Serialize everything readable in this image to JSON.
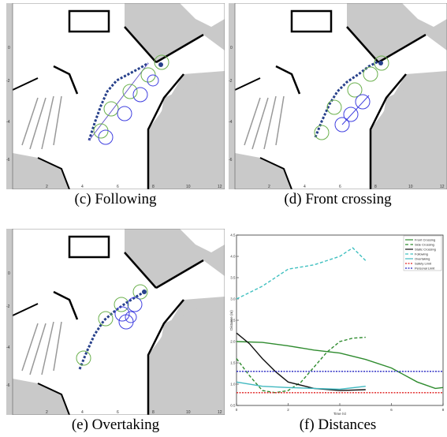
{
  "panels": [
    {
      "id": "c",
      "caption": "(c) Following"
    },
    {
      "id": "d",
      "caption": "(d) Front crossing"
    },
    {
      "id": "e",
      "caption": "(e) Overtaking"
    },
    {
      "id": "f",
      "caption": "(f) Distances"
    }
  ],
  "maps": {
    "xticks": [
      "2",
      "4",
      "6",
      "8",
      "10",
      "12"
    ],
    "yticks": [
      "0",
      "-2",
      "-4",
      "-6"
    ]
  },
  "chart_data": {
    "type": "line",
    "xlabel": "Time (s)",
    "ylabel": "Distance (m)",
    "xlim": [
      0,
      8
    ],
    "ylim": [
      0.5,
      4.5
    ],
    "xticks": [
      0,
      2,
      4,
      6,
      8
    ],
    "yticks": [
      0.5,
      1.0,
      1.5,
      2.0,
      2.5,
      3.0,
      3.5,
      4.0,
      4.5
    ],
    "grid": false,
    "legend_position": "top-right",
    "series": [
      {
        "name": "Front Crossing",
        "color": "#2e8b2e",
        "dash": "solid",
        "x": [
          0,
          1,
          2,
          3,
          4,
          5,
          6,
          7,
          7.7,
          8
        ],
        "y": [
          2.0,
          1.98,
          1.9,
          1.8,
          1.73,
          1.58,
          1.38,
          1.05,
          0.9,
          0.92
        ]
      },
      {
        "name": "Side Crossing",
        "color": "#2e8b2e",
        "dash": "dashed",
        "x": [
          0,
          0.5,
          1,
          1.5,
          2,
          2.5,
          3,
          3.5,
          4,
          4.5,
          5
        ],
        "y": [
          1.6,
          1.2,
          0.85,
          0.8,
          0.85,
          1.05,
          1.4,
          1.75,
          2.0,
          2.08,
          2.1
        ]
      },
      {
        "name": "Static Crossing",
        "color": "#111111",
        "dash": "solid",
        "x": [
          0,
          0.5,
          1,
          1.5,
          2,
          3,
          4,
          5
        ],
        "y": [
          2.2,
          1.95,
          1.6,
          1.3,
          1.05,
          0.9,
          0.85,
          0.87
        ]
      },
      {
        "name": "Following",
        "color": "#40c0c0",
        "dash": "dashed",
        "x": [
          0,
          1,
          2,
          3,
          4,
          4.5,
          5
        ],
        "y": [
          3.0,
          3.3,
          3.7,
          3.8,
          4.0,
          4.2,
          3.9
        ]
      },
      {
        "name": "Overtaking",
        "color": "#40b8c0",
        "dash": "solid",
        "x": [
          0,
          1,
          2,
          3,
          4,
          5
        ],
        "y": [
          1.05,
          0.95,
          0.92,
          0.9,
          0.88,
          0.95
        ]
      },
      {
        "name": "Safety Limit",
        "color": "#e02020",
        "dash": "dotted",
        "x": [
          0,
          8
        ],
        "y": [
          0.8,
          0.8
        ]
      },
      {
        "name": "Personal Limit",
        "color": "#2020c0",
        "dash": "dotted",
        "x": [
          0,
          8
        ],
        "y": [
          1.3,
          1.3
        ]
      }
    ]
  }
}
